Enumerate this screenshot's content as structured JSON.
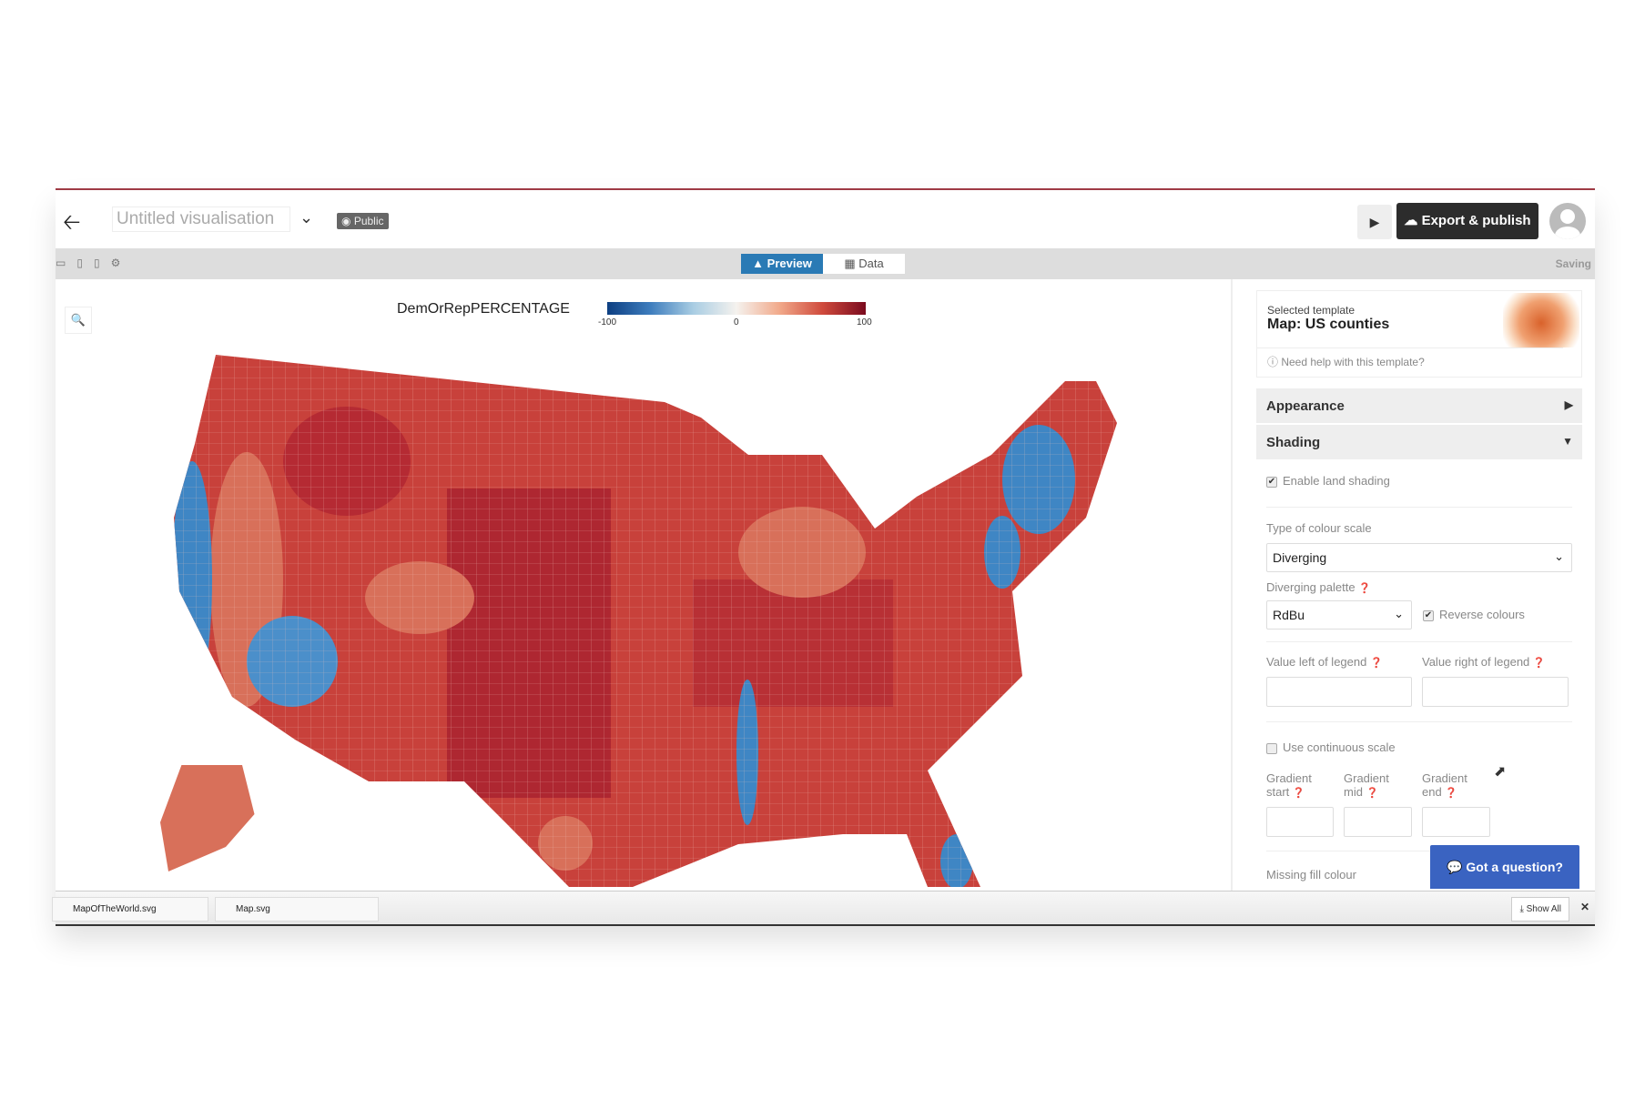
{
  "header": {
    "back_icon": "arrow-left-icon",
    "title": "Untitled visualisation",
    "visibility": "Public",
    "export_label": "Export & publish"
  },
  "toolbar": {
    "tabs": [
      {
        "label": "Preview",
        "active": true
      },
      {
        "label": "Data",
        "active": false
      }
    ],
    "status": "Saving"
  },
  "chart": {
    "legend_title": "DemOrRepPERCENTAGE",
    "legend_min": "-100",
    "legend_mid": "0",
    "legend_max": "100",
    "colors": {
      "blue": "#0d3f82",
      "red": "#7a0a1e",
      "mid": "#f5f2ee"
    }
  },
  "sidebar": {
    "selected_label": "Selected template",
    "template_name": "Map: US counties",
    "help": "Need help with this template?",
    "appearance": "Appearance",
    "shading": "Shading",
    "enable_land_shading": "Enable land shading",
    "enable_land_shading_checked": true,
    "colour_scale_label": "Type of colour scale",
    "colour_scale_value": "Diverging",
    "palette_label": "Diverging palette",
    "palette_value": "RdBu",
    "reverse_label": "Reverse colours",
    "reverse_checked": true,
    "value_left_label": "Value left of legend",
    "value_right_label": "Value right of legend",
    "continuous_label": "Use continuous scale",
    "continuous_checked": false,
    "gradient_start_1": "Gradient",
    "gradient_start_2": "start",
    "gradient_mid_1": "Gradient",
    "gradient_mid_2": "mid",
    "gradient_end_1": "Gradient",
    "gradient_end_2": "end",
    "missing_fill": "Missing fill colour"
  },
  "chat": {
    "label": "Got a question?"
  },
  "downloads": {
    "items": [
      "MapOfTheWorld.svg",
      "Map.svg"
    ],
    "show_all": "Show All"
  }
}
